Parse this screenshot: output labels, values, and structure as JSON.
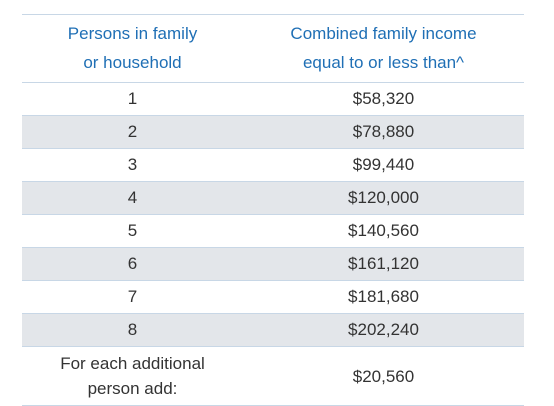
{
  "header": {
    "col1_line1": "Persons in family",
    "col1_line2": "or household",
    "col2_line1": "Combined family income",
    "col2_line2": "equal to or less than^"
  },
  "rows": [
    {
      "persons": "1",
      "income": "$58,320"
    },
    {
      "persons": "2",
      "income": "$78,880"
    },
    {
      "persons": "3",
      "income": "$99,440"
    },
    {
      "persons": "4",
      "income": "$120,000"
    },
    {
      "persons": "5",
      "income": "$140,560"
    },
    {
      "persons": "6",
      "income": "$161,120"
    },
    {
      "persons": "7",
      "income": "$181,680"
    },
    {
      "persons": "8",
      "income": "$202,240"
    }
  ],
  "additional": {
    "label_line1": "For each additional",
    "label_line2": "person add:",
    "income": "$20,560"
  },
  "colors": {
    "header_text": "#1f6fb5",
    "row_shade": "#e3e6ea",
    "divider": "#c8d7e6",
    "body_text": "#333333"
  }
}
